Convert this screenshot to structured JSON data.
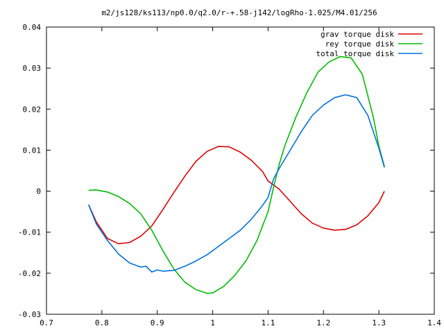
{
  "chart_data": {
    "type": "line",
    "title": "m2/js128/ks113/np0.0/q2.0/r-+.58-j142/logRho-1.025/M4.01/256",
    "xlabel": "",
    "ylabel": "",
    "xlim": [
      0.7,
      1.4
    ],
    "ylim": [
      -0.03,
      0.04
    ],
    "x_ticks": [
      0.7,
      0.8,
      0.9,
      1.0,
      1.1,
      1.2,
      1.3,
      1.4
    ],
    "y_ticks": [
      -0.03,
      -0.02,
      -0.01,
      0,
      0.01,
      0.02,
      0.03,
      0.04
    ],
    "x_tick_labels": [
      "0.7",
      "0.8",
      "0.9",
      "1",
      "1.1",
      "1.2",
      "1.3",
      "1.4"
    ],
    "y_tick_labels": [
      "-0.03",
      "-0.02",
      "-0.01",
      "0",
      "0.01",
      "0.02",
      "0.03",
      "0.04"
    ],
    "grid": false,
    "legend": "top-right",
    "series": [
      {
        "name": "grav torque disk",
        "color": "#dd0000",
        "points": [
          [
            0.776,
            -0.0033
          ],
          [
            0.79,
            -0.0075
          ],
          [
            0.81,
            -0.0115
          ],
          [
            0.83,
            -0.0128
          ],
          [
            0.85,
            -0.0125
          ],
          [
            0.87,
            -0.011
          ],
          [
            0.89,
            -0.0085
          ],
          [
            0.91,
            -0.0045
          ],
          [
            0.93,
            -0.0003
          ],
          [
            0.95,
            0.0037
          ],
          [
            0.97,
            0.0073
          ],
          [
            0.99,
            0.0097
          ],
          [
            1.01,
            0.0109
          ],
          [
            1.03,
            0.0108
          ],
          [
            1.05,
            0.0095
          ],
          [
            1.07,
            0.0075
          ],
          [
            1.09,
            0.0048
          ],
          [
            1.1,
            0.0025
          ],
          [
            1.12,
            0.0005
          ],
          [
            1.14,
            -0.0025
          ],
          [
            1.16,
            -0.0055
          ],
          [
            1.18,
            -0.0078
          ],
          [
            1.2,
            -0.009
          ],
          [
            1.22,
            -0.0095
          ],
          [
            1.24,
            -0.0093
          ],
          [
            1.26,
            -0.0082
          ],
          [
            1.28,
            -0.006
          ],
          [
            1.3,
            -0.0028
          ],
          [
            1.31,
            0.0
          ]
        ]
      },
      {
        "name": "rey torque disk",
        "color": "#00bb00",
        "points": [
          [
            0.776,
            0.0002
          ],
          [
            0.79,
            0.0003
          ],
          [
            0.81,
            -0.0002
          ],
          [
            0.83,
            -0.0013
          ],
          [
            0.85,
            -0.003
          ],
          [
            0.87,
            -0.0055
          ],
          [
            0.89,
            -0.0095
          ],
          [
            0.91,
            -0.0145
          ],
          [
            0.93,
            -0.019
          ],
          [
            0.95,
            -0.0222
          ],
          [
            0.97,
            -0.024
          ],
          [
            0.99,
            -0.0249
          ],
          [
            1.0,
            -0.0248
          ],
          [
            1.02,
            -0.0232
          ],
          [
            1.04,
            -0.0205
          ],
          [
            1.06,
            -0.017
          ],
          [
            1.08,
            -0.012
          ],
          [
            1.09,
            -0.0085
          ],
          [
            1.1,
            -0.005
          ],
          [
            1.11,
            0.001
          ],
          [
            1.12,
            0.0065
          ],
          [
            1.13,
            0.011
          ],
          [
            1.15,
            0.018
          ],
          [
            1.17,
            0.024
          ],
          [
            1.19,
            0.029
          ],
          [
            1.21,
            0.0315
          ],
          [
            1.23,
            0.0328
          ],
          [
            1.25,
            0.0325
          ],
          [
            1.27,
            0.0285
          ],
          [
            1.29,
            0.018
          ],
          [
            1.3,
            0.011
          ],
          [
            1.31,
            0.006
          ]
        ]
      },
      {
        "name": "total torque disk",
        "color": "#0070dd",
        "points": [
          [
            0.776,
            -0.0033
          ],
          [
            0.79,
            -0.008
          ],
          [
            0.81,
            -0.012
          ],
          [
            0.83,
            -0.0153
          ],
          [
            0.85,
            -0.0175
          ],
          [
            0.87,
            -0.0185
          ],
          [
            0.88,
            -0.0183
          ],
          [
            0.89,
            -0.0197
          ],
          [
            0.9,
            -0.0192
          ],
          [
            0.91,
            -0.0195
          ],
          [
            0.93,
            -0.0193
          ],
          [
            0.95,
            -0.0183
          ],
          [
            0.97,
            -0.017
          ],
          [
            0.99,
            -0.0155
          ],
          [
            1.01,
            -0.0135
          ],
          [
            1.03,
            -0.0115
          ],
          [
            1.05,
            -0.0095
          ],
          [
            1.07,
            -0.0068
          ],
          [
            1.09,
            -0.0035
          ],
          [
            1.1,
            -0.0015
          ],
          [
            1.11,
            0.003
          ],
          [
            1.12,
            0.0055
          ],
          [
            1.14,
            0.01
          ],
          [
            1.16,
            0.0145
          ],
          [
            1.18,
            0.0185
          ],
          [
            1.2,
            0.021
          ],
          [
            1.22,
            0.0228
          ],
          [
            1.24,
            0.0235
          ],
          [
            1.26,
            0.0228
          ],
          [
            1.28,
            0.0185
          ],
          [
            1.3,
            0.0105
          ],
          [
            1.31,
            0.0058
          ]
        ]
      }
    ]
  }
}
